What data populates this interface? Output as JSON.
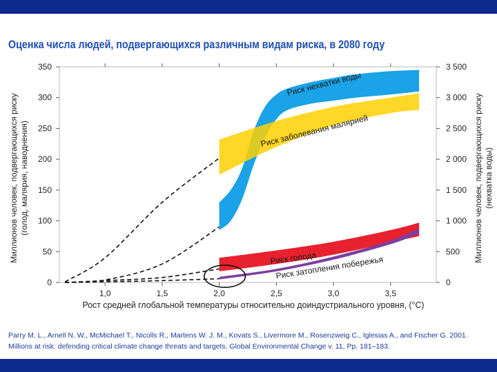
{
  "slide": {
    "title": "Оценка числа людей, подвергающихся различным видам риска, в 2080 году",
    "citation": "Parry M. L., Arnell N. W., McMichael T., Nicolls R., Martens W. J. M., Kovats S., Livermore M., Rosenzweig C., Iglesias A., and Fischer G. 2001. Millions at risk: defending critical climate change threats and targets. Global Environmental Change v. 11, Pp. 181–183.",
    "colors": {
      "bar": "#0d2a8c",
      "title": "#1f4fb0",
      "citation": "#1a3a9a"
    }
  },
  "chart_data": {
    "type": "area",
    "title": "Оценка числа людей, подвергающихся различным видам риска, в 2080 году",
    "xlabel": "Рост средней глобальной температуры относительно доиндустриального уровня, (°C)",
    "ylabel_left": "Миллионов человек, подвергающихся риску (голод, малярия, наводнения)",
    "ylabel_right": "Миллионов человек, подвергающихся риску (нехватка воды)",
    "xlim": [
      0.6,
      3.9
    ],
    "ylim": [
      0,
      350
    ],
    "ylim_right": [
      0,
      3500
    ],
    "x_ticks": [
      1.0,
      1.5,
      2.0,
      2.5,
      3.0,
      3.5
    ],
    "x_tick_labels": [
      "1,0",
      "1,5",
      "2,0",
      "2,5",
      "3,0",
      "3,5"
    ],
    "y_ticks": [
      0,
      50,
      100,
      150,
      200,
      250,
      300,
      350
    ],
    "y_tick_labels": [
      "0",
      "50",
      "100",
      "150",
      "200",
      "250",
      "300",
      "350"
    ],
    "y_right_ticks": [
      0,
      500,
      1000,
      1500,
      2000,
      2500,
      3000,
      3500
    ],
    "y_right_tick_labels": [
      "0",
      "500",
      "1 000",
      "1 500",
      "2 000",
      "2 500",
      "3 000",
      "3 500"
    ],
    "bands": [
      {
        "name": "Риск нехватки воды",
        "axis": "right",
        "color": "#1aa3e6",
        "x": [
          2.0,
          2.1,
          2.2,
          2.3,
          2.4,
          2.5,
          2.6,
          2.8,
          3.0,
          3.2,
          3.5,
          3.75
        ],
        "low": [
          850,
          1000,
          1350,
          1900,
          2350,
          2650,
          2800,
          2900,
          2950,
          3000,
          3050,
          3100
        ],
        "high": [
          1300,
          1500,
          1850,
          2450,
          2850,
          3050,
          3150,
          3250,
          3320,
          3380,
          3430,
          3450
        ]
      },
      {
        "name": "Риск заболевания малярией",
        "axis": "left",
        "color": "#ffd000",
        "x": [
          2.0,
          2.5,
          3.0,
          3.5,
          3.75
        ],
        "low": [
          175,
          220,
          255,
          275,
          280
        ],
        "high": [
          232,
          262,
          285,
          300,
          307
        ]
      },
      {
        "name": "Риск голода",
        "axis": "left",
        "color": "#e8212e",
        "x": [
          2.0,
          2.5,
          3.0,
          3.5,
          3.75
        ],
        "low": [
          18,
          30,
          45,
          65,
          75
        ],
        "high": [
          40,
          52,
          66,
          85,
          97
        ]
      },
      {
        "name": "Риск затопления побережья",
        "axis": "left",
        "color": "#7b3fa0",
        "x": [
          2.0,
          2.5,
          3.0,
          3.5,
          3.75
        ],
        "low": [
          5,
          18,
          37,
          62,
          80
        ],
        "high": [
          9,
          22,
          42,
          68,
          88
        ]
      }
    ],
    "dashed_lines": [
      {
        "name": "Риск заболевания малярией (до 2°C)",
        "axis": "left",
        "x": [
          0.65,
          1.0,
          1.5,
          2.0
        ],
        "y": [
          1,
          40,
          130,
          202
        ]
      },
      {
        "name": "Риск нехватки воды (до 2°C)",
        "axis": "left",
        "x": [
          0.65,
          1.0,
          1.5,
          2.0
        ],
        "y": [
          0,
          4,
          30,
          90
        ]
      },
      {
        "name": "Риск голода (до 2°C)",
        "axis": "left",
        "x": [
          0.65,
          1.0,
          1.5,
          2.0
        ],
        "y": [
          0,
          3,
          8,
          22
        ]
      },
      {
        "name": "Риск затопления побережья (до 2°C)",
        "axis": "left",
        "x": [
          0.65,
          1.0,
          1.5,
          2.0
        ],
        "y": [
          0,
          1,
          3,
          6
        ]
      }
    ],
    "annotations": [
      {
        "text": "Риск нехватки воды",
        "x": 2.6,
        "y": 303,
        "angle": -14
      },
      {
        "text": "Риск заболевания малярией",
        "x": 2.37,
        "y": 220,
        "angle": -14
      },
      {
        "text": "Риск голода",
        "x": 2.45,
        "y": 30,
        "angle": -8
      },
      {
        "text": "Риск затопления побережья",
        "x": 2.5,
        "y": 6,
        "angle": -9
      }
    ],
    "highlight_ellipse": {
      "x": 2.0,
      "y": 10,
      "rx": 0.18,
      "ry": 18
    }
  }
}
